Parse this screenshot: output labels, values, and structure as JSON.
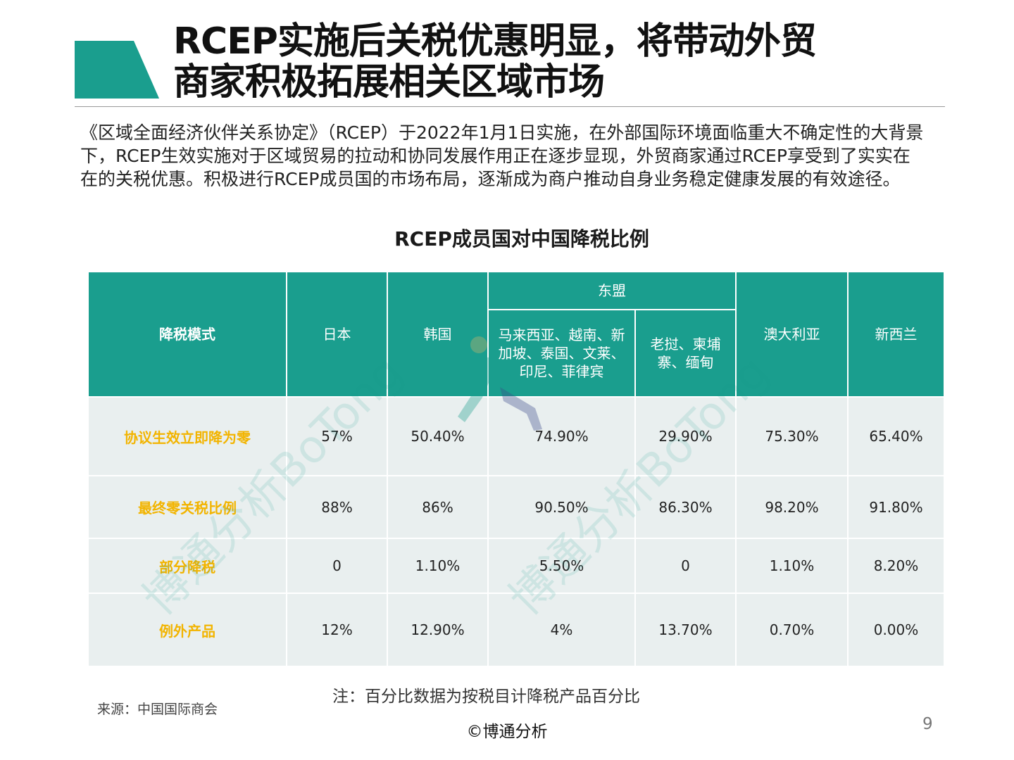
{
  "header": {
    "title_line1": "RCEP实施后关税优惠明显，将带动外贸",
    "title_line2": "商家积极拓展相关区域市场"
  },
  "intro": "《区域全面经济伙伴关系协定》（RCEP）于2022年1月1日实施，在外部国际环境面临重大不确定性的大背景下，RCEP生效实施对于区域贸易的拉动和协同发展作用正在逐步显现，外贸商家通过RCEP享受到了实实在在的关税优惠。积极进行RCEP成员国的市场布局，逐渐成为商户推动自身业务稳定健康发展的有效途径。",
  "table": {
    "title": "RCEP成员国对中国降税比例",
    "row_header": "降税模式",
    "group_header": "东盟",
    "columns": [
      "日本",
      "韩国",
      "马来西亚、越南、新加坡、泰国、文莱、印尼、菲律宾",
      "老挝、柬埔寨、缅甸",
      "澳大利亚",
      "新西兰"
    ],
    "rows": [
      {
        "label": "协议生效立即降为零",
        "values": [
          "57%",
          "50.40%",
          "74.90%",
          "29.90%",
          "75.30%",
          "65.40%"
        ]
      },
      {
        "label": "最终零关税比例",
        "values": [
          "88%",
          "86%",
          "90.50%",
          "86.30%",
          "98.20%",
          "91.80%"
        ]
      },
      {
        "label": "部分降税",
        "values": [
          "0",
          "1.10%",
          "5.50%",
          "0",
          "1.10%",
          "8.20%"
        ]
      },
      {
        "label": "例外产品",
        "values": [
          "12%",
          "12.90%",
          "4%",
          "13.70%",
          "0.70%",
          "0.00%"
        ]
      }
    ]
  },
  "note": "注：百分比数据为按税目计降税产品百分比",
  "source": "来源：中国国际商会",
  "watermark": "博通分析BoTong",
  "footer": {
    "copyright": "©博通分析",
    "page_number": "9"
  },
  "colors": {
    "accent": "#1a9e8e",
    "row_label": "#f2b400",
    "cell_bg": "#e9efef"
  }
}
